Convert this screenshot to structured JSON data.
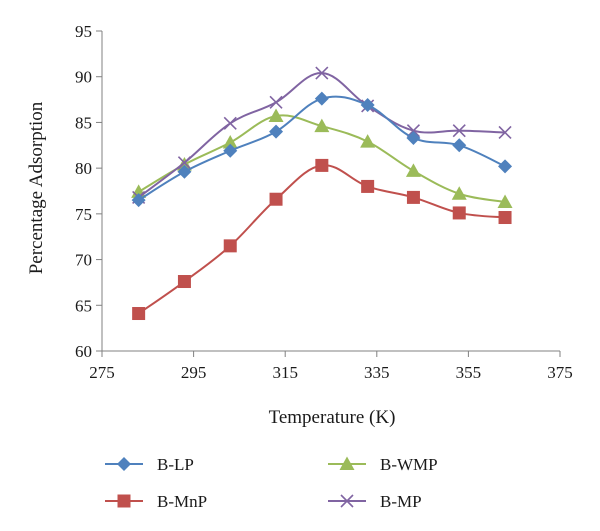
{
  "chart_data": {
    "type": "line",
    "xlabel": "Temperature (K)",
    "ylabel": "Percentage Adsorption",
    "xlim": [
      275,
      375
    ],
    "ylim": [
      60,
      95
    ],
    "xticks": [
      275,
      295,
      315,
      335,
      355,
      375
    ],
    "yticks": [
      60,
      65,
      70,
      75,
      80,
      85,
      90,
      95
    ],
    "x": [
      283,
      293,
      303,
      313,
      323,
      333,
      343,
      353,
      363
    ],
    "grid": false,
    "legend_position": "bottom",
    "series": [
      {
        "name": "B-LP",
        "color": "#4f81bd",
        "marker": "diamond",
        "values": [
          76.5,
          79.6,
          81.9,
          84.0,
          87.6,
          86.9,
          83.3,
          82.5,
          80.2
        ]
      },
      {
        "name": "B-MnP",
        "color": "#c0504d",
        "marker": "square",
        "values": [
          64.1,
          67.6,
          71.5,
          76.6,
          80.3,
          78.0,
          76.8,
          75.1,
          74.6
        ]
      },
      {
        "name": "B-WMP",
        "color": "#9bbb59",
        "marker": "triangle",
        "values": [
          77.4,
          80.4,
          82.8,
          85.7,
          84.6,
          82.9,
          79.7,
          77.2,
          76.3
        ]
      },
      {
        "name": "B-MP",
        "color": "#8064a2",
        "marker": "x",
        "values": [
          76.8,
          80.6,
          84.9,
          87.2,
          90.4,
          86.8,
          84.1,
          84.1,
          83.9
        ]
      }
    ]
  }
}
